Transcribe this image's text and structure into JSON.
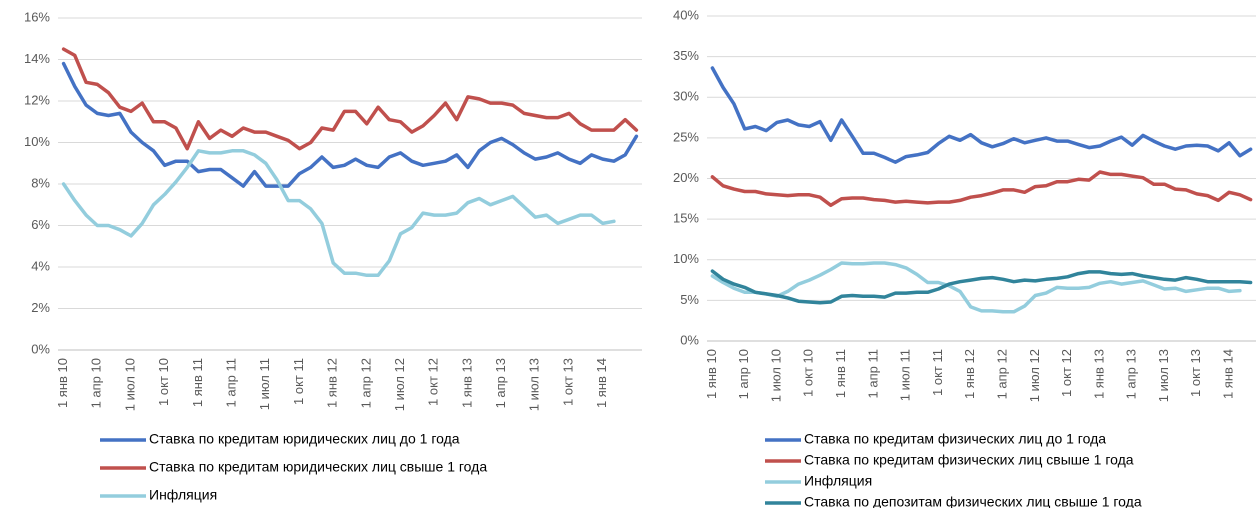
{
  "chart_data": [
    {
      "type": "line",
      "categories": [
        "1 янв 10",
        null,
        null,
        "1 апр 10",
        null,
        null,
        "1 июл 10",
        null,
        null,
        "1 окт 10",
        null,
        null,
        "1 янв 11",
        null,
        null,
        "1 апр 11",
        null,
        null,
        "1 июл 11",
        null,
        null,
        "1 окт 11",
        null,
        null,
        "1 янв 12",
        null,
        null,
        "1 апр 12",
        null,
        null,
        "1 июл 12",
        null,
        null,
        "1 окт 12",
        null,
        null,
        "1 янв 13",
        null,
        null,
        "1 апр 13",
        null,
        null,
        "1 июл 13",
        null,
        null,
        "1 окт 13",
        null,
        null,
        "1 янв 14",
        null,
        null,
        null
      ],
      "series": [
        {
          "name": "Ставка по кредитам юридических лиц до 1 года",
          "color": "#4472c4",
          "values": [
            13.8,
            12.7,
            11.8,
            11.4,
            11.3,
            11.4,
            10.5,
            10.0,
            9.6,
            8.9,
            9.1,
            9.1,
            8.6,
            8.7,
            8.7,
            8.3,
            7.9,
            8.6,
            7.9,
            7.9,
            7.9,
            8.5,
            8.8,
            9.3,
            8.8,
            8.9,
            9.2,
            8.9,
            8.8,
            9.3,
            9.5,
            9.1,
            8.9,
            9.0,
            9.1,
            9.4,
            8.8,
            9.6,
            10.0,
            10.2,
            9.9,
            9.5,
            9.2,
            9.3,
            9.5,
            9.2,
            9.0,
            9.4,
            9.2,
            9.1,
            9.4,
            10.3
          ]
        },
        {
          "name": "Ставка по кредитам юридических лиц свыше 1 года",
          "color": "#c0504d",
          "values": [
            14.5,
            14.2,
            12.9,
            12.8,
            12.4,
            11.7,
            11.5,
            11.9,
            11.0,
            11.0,
            10.7,
            9.7,
            11.0,
            10.2,
            10.6,
            10.3,
            10.7,
            10.5,
            10.5,
            10.3,
            10.1,
            9.7,
            10.0,
            10.7,
            10.6,
            11.5,
            11.5,
            10.9,
            11.7,
            11.1,
            11.0,
            10.5,
            10.8,
            11.3,
            11.9,
            11.1,
            12.2,
            12.1,
            11.9,
            11.9,
            11.8,
            11.4,
            11.3,
            11.2,
            11.2,
            11.4,
            10.9,
            10.6,
            10.6,
            10.6,
            11.1,
            10.6
          ]
        },
        {
          "name": "Инфляция",
          "color": "#93cddd",
          "values": [
            8.0,
            7.2,
            6.5,
            6.0,
            6.0,
            5.8,
            5.5,
            6.1,
            7.0,
            7.5,
            8.1,
            8.8,
            9.6,
            9.5,
            9.5,
            9.6,
            9.6,
            9.4,
            9.0,
            8.2,
            7.2,
            7.2,
            6.8,
            6.1,
            4.2,
            3.7,
            3.7,
            3.6,
            3.6,
            4.3,
            5.6,
            5.9,
            6.6,
            6.5,
            6.5,
            6.6,
            7.1,
            7.3,
            7.0,
            7.2,
            7.4,
            6.9,
            6.4,
            6.5,
            6.1,
            6.3,
            6.5,
            6.5,
            6.1,
            6.2,
            null,
            null
          ]
        }
      ],
      "ylim": [
        0,
        16
      ],
      "yticks": [
        {
          "value": 0,
          "label": "0%"
        },
        {
          "value": 2,
          "label": "2%"
        },
        {
          "value": 4,
          "label": "4%"
        },
        {
          "value": 6,
          "label": "6%"
        },
        {
          "value": 8,
          "label": "8%"
        },
        {
          "value": 10,
          "label": "10%"
        },
        {
          "value": 12,
          "label": "12%"
        },
        {
          "value": 14,
          "label": "14%"
        },
        {
          "value": 16,
          "label": "16%"
        }
      ],
      "grid": true,
      "legend": "bottom"
    },
    {
      "type": "line",
      "categories": [
        "1 янв 10",
        null,
        null,
        "1 апр 10",
        null,
        null,
        "1 июл 10",
        null,
        null,
        "1 окт 10",
        null,
        null,
        "1 янв 11",
        null,
        null,
        "1 апр 11",
        null,
        null,
        "1 июл 11",
        null,
        null,
        "1 окт 11",
        null,
        null,
        "1 янв 12",
        null,
        null,
        "1 апр 12",
        null,
        null,
        "1 июл 12",
        null,
        null,
        "1 окт 12",
        null,
        null,
        "1 янв 13",
        null,
        null,
        "1 апр 13",
        null,
        null,
        "1 июл 13",
        null,
        null,
        "1 окт 13",
        null,
        null,
        "1 янв 14",
        null,
        null
      ],
      "series": [
        {
          "name": "Ставка по кредитам физических лиц до 1 года",
          "color": "#4472c4",
          "values": [
            33.6,
            31.2,
            29.2,
            26.1,
            26.4,
            25.9,
            26.9,
            27.2,
            26.6,
            26.4,
            27.0,
            24.7,
            27.2,
            25.2,
            23.1,
            23.1,
            22.6,
            22.0,
            22.7,
            22.9,
            23.2,
            24.3,
            25.2,
            24.7,
            25.4,
            24.4,
            23.9,
            24.3,
            24.9,
            24.4,
            24.7,
            25.0,
            24.6,
            24.6,
            24.2,
            23.8,
            24.0,
            24.6,
            25.1,
            24.1,
            25.3,
            24.6,
            24.0,
            23.6,
            24.0,
            24.1,
            24.0,
            23.4,
            24.4,
            22.8,
            23.6
          ]
        },
        {
          "name": "Ставка по кредитам физических лиц свыше 1 года",
          "color": "#c0504d",
          "values": [
            20.2,
            19.1,
            18.7,
            18.4,
            18.4,
            18.1,
            18.0,
            17.9,
            18.0,
            18.0,
            17.7,
            16.7,
            17.5,
            17.6,
            17.6,
            17.4,
            17.3,
            17.1,
            17.2,
            17.1,
            17.0,
            17.1,
            17.1,
            17.3,
            17.7,
            17.9,
            18.2,
            18.6,
            18.6,
            18.3,
            19.0,
            19.1,
            19.6,
            19.6,
            19.9,
            19.8,
            20.8,
            20.5,
            20.5,
            20.3,
            20.1,
            19.3,
            19.3,
            18.7,
            18.6,
            18.1,
            17.9,
            17.3,
            18.3,
            18.0,
            17.4
          ]
        },
        {
          "name": "Инфляция",
          "color": "#93cddd",
          "values": [
            8.0,
            7.2,
            6.5,
            6.0,
            6.0,
            5.8,
            5.5,
            6.1,
            7.0,
            7.5,
            8.1,
            8.8,
            9.6,
            9.5,
            9.5,
            9.6,
            9.6,
            9.4,
            9.0,
            8.2,
            7.2,
            7.2,
            6.8,
            6.1,
            4.2,
            3.7,
            3.7,
            3.6,
            3.6,
            4.3,
            5.6,
            5.9,
            6.6,
            6.5,
            6.5,
            6.6,
            7.1,
            7.3,
            7.0,
            7.2,
            7.4,
            6.9,
            6.4,
            6.5,
            6.1,
            6.3,
            6.5,
            6.5,
            6.1,
            6.2,
            null
          ]
        },
        {
          "name": "Ставка по депозитам физических лиц свыше 1 года",
          "color": "#31849b",
          "values": [
            8.6,
            7.6,
            7.0,
            6.6,
            6.0,
            5.8,
            5.6,
            5.3,
            4.9,
            4.8,
            4.7,
            4.8,
            5.5,
            5.6,
            5.5,
            5.5,
            5.4,
            5.9,
            5.9,
            6.0,
            6.0,
            6.4,
            7.0,
            7.3,
            7.5,
            7.7,
            7.8,
            7.6,
            7.3,
            7.5,
            7.4,
            7.6,
            7.7,
            7.9,
            8.3,
            8.5,
            8.5,
            8.3,
            8.2,
            8.3,
            8.0,
            7.8,
            7.6,
            7.5,
            7.8,
            7.6,
            7.3,
            7.3,
            7.3,
            7.3,
            7.2
          ]
        }
      ],
      "ylim": [
        0,
        40
      ],
      "yticks": [
        {
          "value": 0,
          "label": "0%"
        },
        {
          "value": 5,
          "label": "5%"
        },
        {
          "value": 10,
          "label": "10%"
        },
        {
          "value": 15,
          "label": "15%"
        },
        {
          "value": 20,
          "label": "20%"
        },
        {
          "value": 25,
          "label": "25%"
        },
        {
          "value": 30,
          "label": "30%"
        },
        {
          "value": 35,
          "label": "35%"
        },
        {
          "value": 40,
          "label": "40%"
        }
      ],
      "grid": true,
      "legend": "bottom"
    }
  ]
}
